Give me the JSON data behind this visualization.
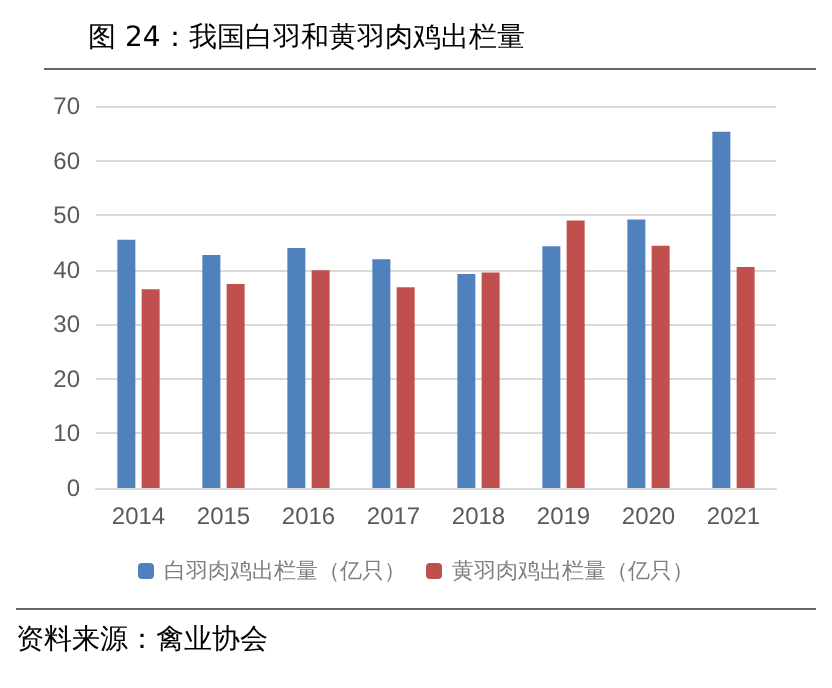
{
  "chart_data": {
    "type": "bar",
    "title": "图 24：我国白羽和黄羽肉鸡出栏量",
    "categories": [
      "2014",
      "2015",
      "2016",
      "2017",
      "2018",
      "2019",
      "2020",
      "2021"
    ],
    "series": [
      {
        "name": "白羽肉鸡出栏量（亿只）",
        "color": "#4f81bd",
        "values": [
          45.5,
          42.7,
          44,
          41.9,
          39.2,
          44.3,
          49.2,
          65.3
        ]
      },
      {
        "name": "黄羽肉鸡出栏量（亿只）",
        "color": "#c0504d",
        "values": [
          36.4,
          37.4,
          39.9,
          36.8,
          39.5,
          49,
          44.4,
          40.5
        ]
      }
    ],
    "ylim": [
      0,
      70
    ],
    "yticks": [
      0,
      10,
      20,
      30,
      40,
      50,
      60,
      70
    ],
    "grid": "y",
    "legend": "bottom",
    "annotations": [
      "资料来源：禽业协会"
    ]
  }
}
